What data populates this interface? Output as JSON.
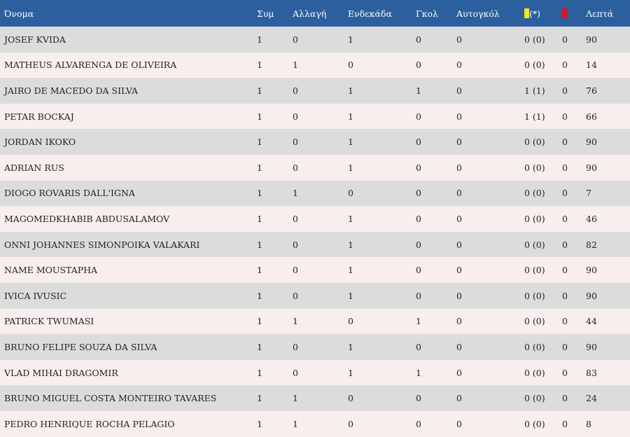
{
  "table": {
    "headers": {
      "name": "Όνομα",
      "apps": "Συμ",
      "subs": "Αλλαγή",
      "starts": "Ενδεκάδα",
      "goals": "Γκολ",
      "own_goals": "Αυτογκόλ",
      "yellow_suffix": "(*)",
      "minutes": "Λεπτά"
    },
    "icons": {
      "yellow": "yellow-card-icon",
      "red": "red-card-icon",
      "yellow_color": "#f0e62a",
      "red_color": "#e8101b",
      "header_color": "#2c5f9e"
    },
    "rows": [
      {
        "name": "JOSEF KVIDA",
        "apps": "1",
        "subs": "0",
        "starts": "1",
        "goals": "0",
        "own_goals": "0",
        "yellow": "0 (0)",
        "red": "0",
        "minutes": "90"
      },
      {
        "name": "MATHEUS ALVARENGA DE OLIVEIRA",
        "apps": "1",
        "subs": "1",
        "starts": "0",
        "goals": "0",
        "own_goals": "0",
        "yellow": "0 (0)",
        "red": "0",
        "minutes": "14"
      },
      {
        "name": "JAIRO DE MACEDO DA SILVA",
        "apps": "1",
        "subs": "0",
        "starts": "1",
        "goals": "1",
        "own_goals": "0",
        "yellow": "1 (1)",
        "red": "0",
        "minutes": "76"
      },
      {
        "name": "PETAR BOCKAJ",
        "apps": "1",
        "subs": "0",
        "starts": "1",
        "goals": "0",
        "own_goals": "0",
        "yellow": "1 (1)",
        "red": "0",
        "minutes": "66"
      },
      {
        "name": "JORDAN IKOKO",
        "apps": "1",
        "subs": "0",
        "starts": "1",
        "goals": "0",
        "own_goals": "0",
        "yellow": "0 (0)",
        "red": "0",
        "minutes": "90"
      },
      {
        "name": "ADRIAN RUS",
        "apps": "1",
        "subs": "0",
        "starts": "1",
        "goals": "0",
        "own_goals": "0",
        "yellow": "0 (0)",
        "red": "0",
        "minutes": "90"
      },
      {
        "name": "DIOGO ROVARIS DALL'IGNA",
        "apps": "1",
        "subs": "1",
        "starts": "0",
        "goals": "0",
        "own_goals": "0",
        "yellow": "0 (0)",
        "red": "0",
        "minutes": "7"
      },
      {
        "name": "MAGOMEDKHABIB ABDUSALAMOV",
        "apps": "1",
        "subs": "0",
        "starts": "1",
        "goals": "0",
        "own_goals": "0",
        "yellow": "0 (0)",
        "red": "0",
        "minutes": "46"
      },
      {
        "name": "ONNI JOHANNES SIMONPOIKA VALAKARI",
        "apps": "1",
        "subs": "0",
        "starts": "1",
        "goals": "0",
        "own_goals": "0",
        "yellow": "0 (0)",
        "red": "0",
        "minutes": "82"
      },
      {
        "name": "NAME MOUSTAPHA",
        "apps": "1",
        "subs": "0",
        "starts": "1",
        "goals": "0",
        "own_goals": "0",
        "yellow": "0 (0)",
        "red": "0",
        "minutes": "90"
      },
      {
        "name": "IVICA IVUSIC",
        "apps": "1",
        "subs": "0",
        "starts": "1",
        "goals": "0",
        "own_goals": "0",
        "yellow": "0 (0)",
        "red": "0",
        "minutes": "90"
      },
      {
        "name": "PATRICK TWUMASI",
        "apps": "1",
        "subs": "1",
        "starts": "0",
        "goals": "1",
        "own_goals": "0",
        "yellow": "0 (0)",
        "red": "0",
        "minutes": "44"
      },
      {
        "name": "BRUNO FELIPE SOUZA DA SILVA",
        "apps": "1",
        "subs": "0",
        "starts": "1",
        "goals": "0",
        "own_goals": "0",
        "yellow": "0 (0)",
        "red": "0",
        "minutes": "90"
      },
      {
        "name": "VLAD MIHAI DRAGOMIR",
        "apps": "1",
        "subs": "0",
        "starts": "1",
        "goals": "1",
        "own_goals": "0",
        "yellow": "0 (0)",
        "red": "0",
        "minutes": "83"
      },
      {
        "name": "BRUNO MIGUEL COSTA MONTEIRO TAVARES",
        "apps": "1",
        "subs": "1",
        "starts": "0",
        "goals": "0",
        "own_goals": "0",
        "yellow": "0 (0)",
        "red": "0",
        "minutes": "24"
      },
      {
        "name": "PEDRO HENRIQUE ROCHA PELAGIO",
        "apps": "1",
        "subs": "1",
        "starts": "0",
        "goals": "0",
        "own_goals": "0",
        "yellow": "0 (0)",
        "red": "0",
        "minutes": "8"
      }
    ]
  }
}
